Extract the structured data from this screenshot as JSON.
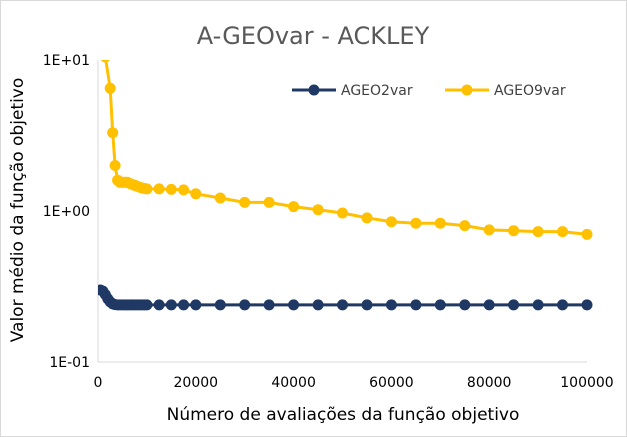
{
  "chart_data": {
    "type": "line",
    "title": "A-GEOvar - ACKLEY",
    "xlabel": "Número de avaliações da função objetivo",
    "ylabel": "Valor médio da função objetivo",
    "x_scale": "linear",
    "y_scale": "log",
    "xlim": [
      0,
      100000
    ],
    "ylim": [
      0.1,
      10
    ],
    "x_ticks": [
      0,
      20000,
      40000,
      60000,
      80000,
      100000
    ],
    "x_tick_labels": [
      "0",
      "20000",
      "40000",
      "60000",
      "80000",
      "100000"
    ],
    "y_ticks": [
      0.1,
      1,
      10
    ],
    "y_tick_labels": [
      "1E-01",
      "1E+00",
      "1E+01"
    ],
    "grid": false,
    "legend_position": "top-right",
    "series": [
      {
        "name": "AGEO2var",
        "color": "#203864",
        "x": [
          500,
          1000,
          1500,
          2000,
          2500,
          3000,
          3500,
          4000,
          4500,
          5000,
          5500,
          6000,
          6500,
          7000,
          7500,
          8000,
          8500,
          9000,
          9500,
          10000,
          12500,
          15000,
          17500,
          20000,
          25000,
          30000,
          35000,
          40000,
          45000,
          50000,
          55000,
          60000,
          65000,
          70000,
          75000,
          80000,
          85000,
          90000,
          95000,
          100000
        ],
        "values": [
          0.3,
          0.295,
          0.28,
          0.262,
          0.25,
          0.243,
          0.24,
          0.239,
          0.239,
          0.239,
          0.239,
          0.239,
          0.239,
          0.239,
          0.239,
          0.239,
          0.239,
          0.239,
          0.239,
          0.239,
          0.239,
          0.239,
          0.239,
          0.239,
          0.239,
          0.239,
          0.239,
          0.239,
          0.239,
          0.239,
          0.239,
          0.239,
          0.239,
          0.239,
          0.239,
          0.239,
          0.239,
          0.239,
          0.239,
          0.239
        ]
      },
      {
        "name": "AGEO9var",
        "color": "#ffc000",
        "x": [
          1500,
          2500,
          3000,
          3500,
          4000,
          4500,
          5000,
          5500,
          6000,
          6500,
          7000,
          7500,
          8000,
          8500,
          9000,
          9500,
          10000,
          12500,
          15000,
          17500,
          20000,
          25000,
          30000,
          35000,
          40000,
          45000,
          50000,
          55000,
          60000,
          65000,
          70000,
          75000,
          80000,
          85000,
          90000,
          95000,
          100000
        ],
        "values": [
          10.5,
          6.5,
          3.3,
          2.0,
          1.6,
          1.55,
          1.55,
          1.55,
          1.55,
          1.52,
          1.5,
          1.48,
          1.46,
          1.44,
          1.42,
          1.41,
          1.4,
          1.4,
          1.39,
          1.38,
          1.3,
          1.22,
          1.14,
          1.14,
          1.07,
          1.02,
          0.97,
          0.9,
          0.85,
          0.83,
          0.83,
          0.8,
          0.75,
          0.74,
          0.73,
          0.73,
          0.7
        ]
      }
    ]
  }
}
